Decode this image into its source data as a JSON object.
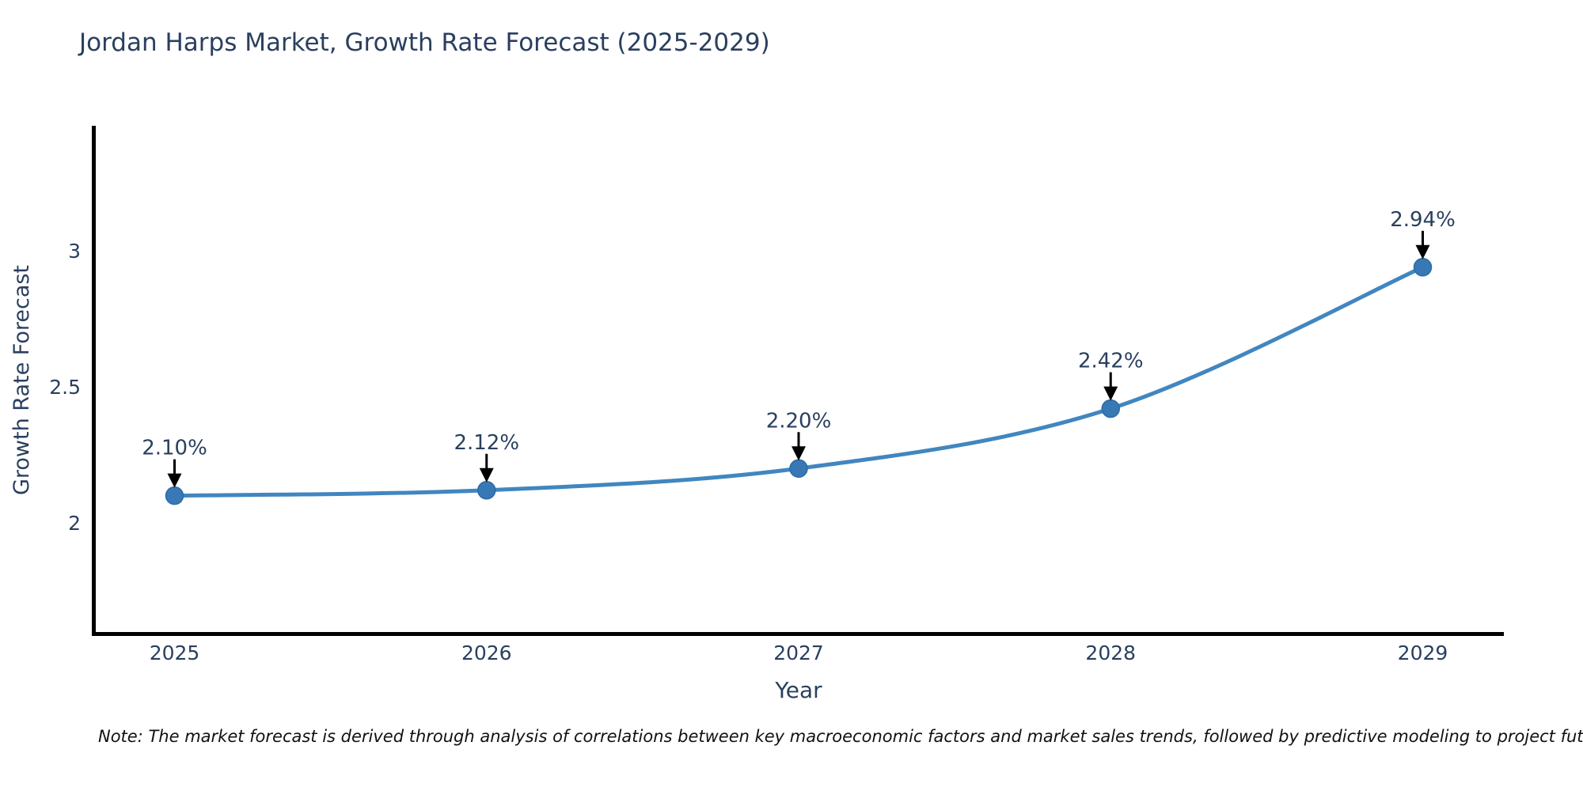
{
  "title": "Jordan Harps Market, Growth Rate Forecast (2025-2029)",
  "note": "Note: The market forecast is derived through analysis of correlations between key macroeconomic factors and market sales trends, followed by predictive modeling to project future sales",
  "chart_data": {
    "type": "line",
    "title": "Jordan Harps Market, Growth Rate Forecast (2025-2029)",
    "xlabel": "Year",
    "ylabel": "Growth Rate Forecast",
    "x": [
      2025,
      2026,
      2027,
      2028,
      2029
    ],
    "y": [
      2.1,
      2.12,
      2.2,
      2.42,
      2.94
    ],
    "point_labels": [
      "2.10%",
      "2.12%",
      "2.20%",
      "2.42%",
      "2.94%"
    ],
    "xtick_labels": [
      "2025",
      "2026",
      "2027",
      "2028",
      "2029"
    ],
    "ytick_values": [
      2,
      2.5,
      3
    ],
    "ytick_labels": [
      "2",
      "2.5",
      "3"
    ],
    "xlim": [
      2024.74,
      2029.26
    ],
    "ylim": [
      1.59,
      3.46
    ],
    "grid": false,
    "legend": false,
    "line_shape": "spline",
    "colors": {
      "line": "#4186c0",
      "marker": "#3878b4",
      "marker_edge": "#2d6ba5",
      "axis": "#000000",
      "text": "#2a3f5f",
      "annotation": "#2a3f5f",
      "arrow": "#000000"
    }
  }
}
